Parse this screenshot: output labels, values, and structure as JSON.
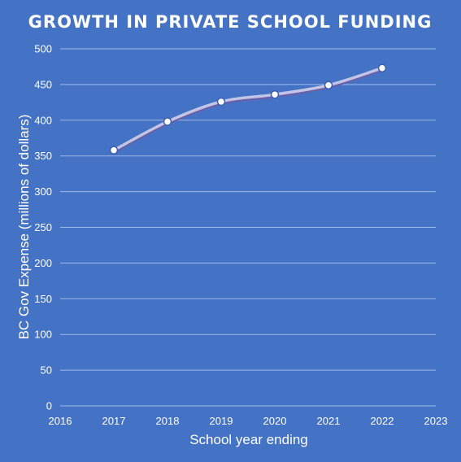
{
  "chart_data": {
    "type": "line",
    "title": "GROWTH IN PRIVATE SCHOOL FUNDING",
    "xlabel": "School year ending",
    "ylabel": "BC Gov Expense (millions of dollars)",
    "xlim": [
      2016,
      2023
    ],
    "ylim": [
      0,
      500
    ],
    "x_ticks": [
      "2016",
      "2017",
      "2018",
      "2019",
      "2020",
      "2021",
      "2022",
      "2023"
    ],
    "y_ticks": [
      "0",
      "50",
      "100",
      "150",
      "200",
      "250",
      "300",
      "350",
      "400",
      "450",
      "500"
    ],
    "grid": true,
    "legend": "none",
    "series": [
      {
        "x": [
          2017,
          2018,
          2019,
          2020,
          2021,
          2022
        ],
        "values": [
          358,
          398,
          426,
          436,
          449,
          473
        ]
      }
    ]
  },
  "colors": {
    "background": "#4473c5",
    "line": "#c3c5e6",
    "line_shadow": "#6a5fa8",
    "gridline": "#9fb8e6",
    "marker_fill": "#ffffff",
    "marker_stroke": "#3b5fb0",
    "text": "#ffffff"
  }
}
